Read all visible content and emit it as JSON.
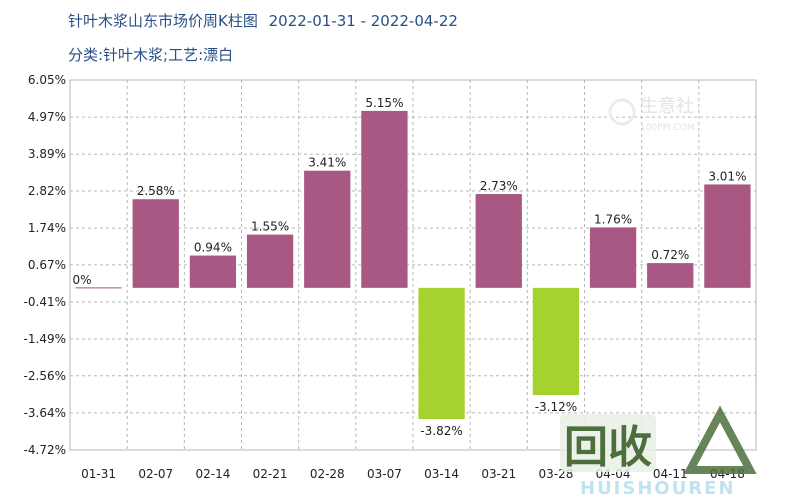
{
  "header": {
    "title": "针叶木浆山东市场价周K柱图",
    "date_range": "2022-01-31 - 2022-04-22",
    "subtitle": "分类:针叶木浆;工艺:漂白"
  },
  "watermark": {
    "top_logo_text": "生意社",
    "top_logo_sub": "100PPI.COM",
    "big_text": "回收",
    "brand_text": "HUISHOUREN"
  },
  "colors": {
    "positive": "#a85882",
    "negative": "#a6d22e",
    "grid": "#b7b7b7",
    "text": "#222222"
  },
  "chart_data": {
    "type": "bar",
    "title": "针叶木浆山东市场价周K柱图",
    "categories": [
      "01-31",
      "02-07",
      "02-14",
      "02-21",
      "02-28",
      "03-07",
      "03-14",
      "03-21",
      "03-28",
      "04-04",
      "04-11",
      "04-18"
    ],
    "values": [
      0,
      2.58,
      0.94,
      1.55,
      3.41,
      5.15,
      -3.82,
      2.73,
      -3.12,
      1.76,
      0.72,
      3.01
    ],
    "data_labels": [
      "0%",
      "2.58%",
      "0.94%",
      "1.55%",
      "3.41%",
      "5.15%",
      "-3.82%",
      "2.73%",
      "-3.12%",
      "1.76%",
      "0.72%",
      "3.01%"
    ],
    "y_ticks": [
      "6.05%",
      "4.97%",
      "3.89%",
      "2.82%",
      "1.74%",
      "0.67%",
      "-0.41%",
      "-1.49%",
      "-2.56%",
      "-3.64%",
      "-4.72%"
    ],
    "y_tick_values": [
      6.05,
      4.97,
      3.89,
      2.82,
      1.74,
      0.67,
      -0.41,
      -1.49,
      -2.56,
      -3.64,
      -4.72
    ],
    "ylim": [
      -4.72,
      6.05
    ],
    "grid": true
  }
}
